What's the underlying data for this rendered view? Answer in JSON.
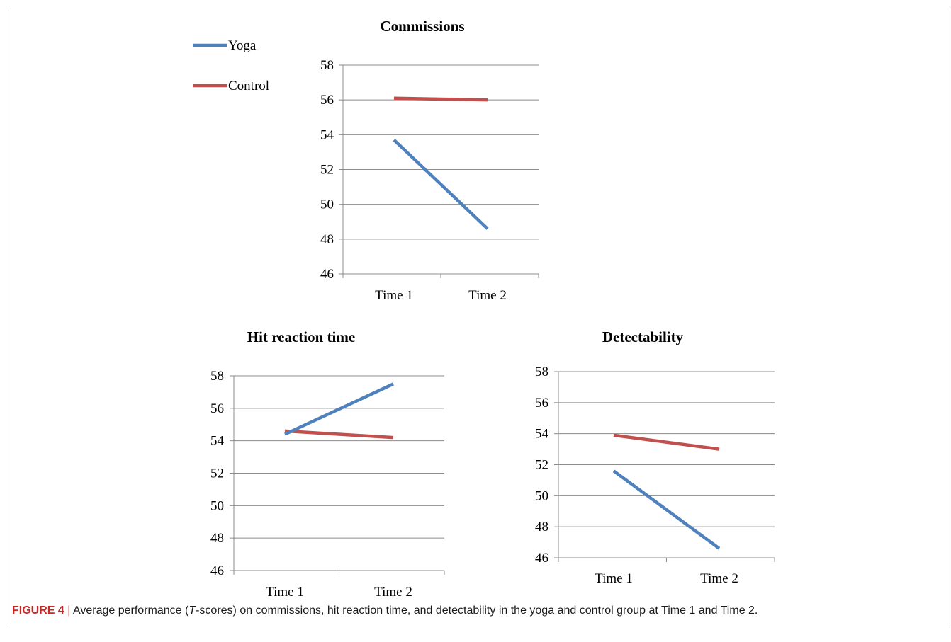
{
  "legend": [
    {
      "label": "Yoga",
      "color": "#4f81bd"
    },
    {
      "label": "Control",
      "color": "#c0504d"
    }
  ],
  "caption": {
    "label": "FIGURE 4",
    "separator": " | ",
    "text_before": "Average performance (",
    "italic": "T",
    "text_after": "-scores) on commissions, hit reaction time, and detectability in the yoga and control group at Time 1 and Time 2."
  },
  "chart_data": [
    {
      "type": "line",
      "title": "Commissions",
      "categories": [
        "Time 1",
        "Time 2"
      ],
      "ylim": [
        46,
        58
      ],
      "yticks": [
        46,
        48,
        50,
        52,
        54,
        56,
        58
      ],
      "grid": true,
      "legend_position": "top-left",
      "series": [
        {
          "name": "Yoga",
          "color": "#4f81bd",
          "values": [
            53.7,
            48.6
          ]
        },
        {
          "name": "Control",
          "color": "#c0504d",
          "values": [
            56.1,
            56.0
          ]
        }
      ]
    },
    {
      "type": "line",
      "title": "Hit reaction time",
      "categories": [
        "Time 1",
        "Time 2"
      ],
      "ylim": [
        46,
        58
      ],
      "yticks": [
        46,
        48,
        50,
        52,
        54,
        56,
        58
      ],
      "grid": true,
      "series": [
        {
          "name": "Yoga",
          "color": "#4f81bd",
          "values": [
            54.4,
            57.5
          ]
        },
        {
          "name": "Control",
          "color": "#c0504d",
          "values": [
            54.6,
            54.2
          ]
        }
      ]
    },
    {
      "type": "line",
      "title": "Detectability",
      "categories": [
        "Time 1",
        "Time 2"
      ],
      "ylim": [
        46,
        58
      ],
      "yticks": [
        46,
        48,
        50,
        52,
        54,
        56,
        58
      ],
      "grid": true,
      "series": [
        {
          "name": "Yoga",
          "color": "#4f81bd",
          "values": [
            51.6,
            46.6
          ]
        },
        {
          "name": "Control",
          "color": "#c0504d",
          "values": [
            53.9,
            53.0
          ]
        }
      ]
    }
  ]
}
